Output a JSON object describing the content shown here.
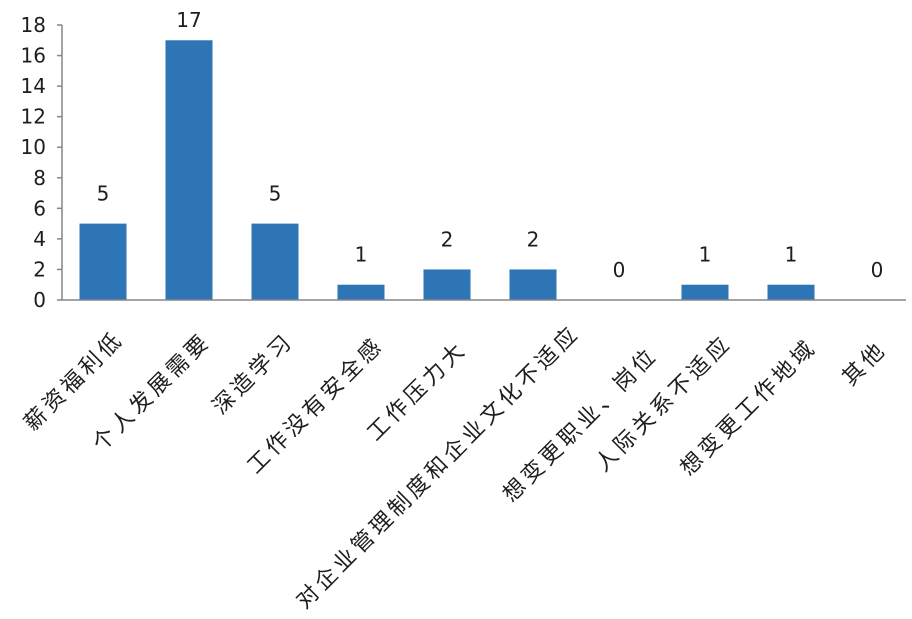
{
  "chart_data": {
    "type": "bar",
    "categories": [
      "薪资福利低",
      "个人发展需要",
      "深造学习",
      "工作没有安全感",
      "工作压力大",
      "对企业管理制度和企业文化不适应",
      "想变更职业、岗位",
      "人际关系不适应",
      "想变更工作地域",
      "其他"
    ],
    "values": [
      5,
      17,
      5,
      1,
      2,
      2,
      0,
      1,
      1,
      0
    ],
    "ylim": [
      0,
      18
    ],
    "yticks": [
      0,
      2,
      4,
      6,
      8,
      10,
      12,
      14,
      16,
      18
    ],
    "grid": false,
    "legend": "none",
    "data_labels": true,
    "bar_color": "#2E75B6"
  }
}
